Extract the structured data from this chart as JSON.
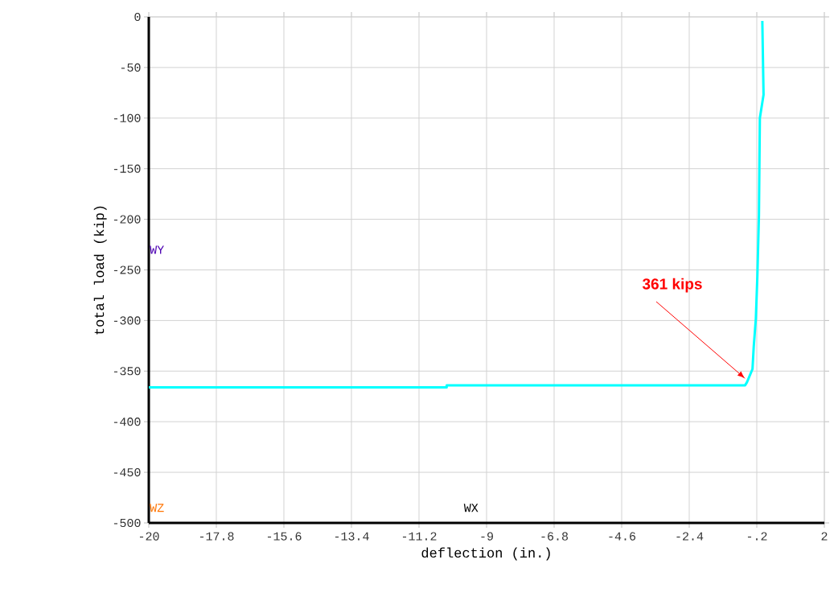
{
  "chart_data": {
    "type": "line",
    "xlabel": "deflection (in.)",
    "ylabel": "total load (kip)",
    "x": [
      -20,
      -10.3,
      -10.3,
      -0.58,
      -0.52,
      -0.34,
      -0.3,
      -0.23,
      -0.18,
      -0.13,
      -0.1,
      0.02,
      -0.02
    ],
    "series": [
      {
        "color": "#00ffff",
        "values": [
          -366,
          -366,
          -364,
          -364,
          -361,
          -348,
          -326,
          -298,
          -255,
          -196,
          -100,
          -77,
          -4
        ]
      }
    ],
    "xlim": [
      -20,
      2
    ],
    "ylim": [
      -500,
      0
    ],
    "xticks": [
      -20,
      -17.8,
      -15.6,
      -13.4,
      -11.2,
      -9,
      -6.8,
      -4.6,
      -2.4,
      {
        "value": -0.2,
        "label": "-.2"
      },
      2
    ],
    "yticks": [
      -500,
      -450,
      -400,
      -350,
      -300,
      -250,
      -200,
      -150,
      -100,
      -50,
      0
    ],
    "grid": true,
    "marker": "none",
    "line_style": "solid",
    "annotations": [
      "361 kips",
      "WY",
      "WZ",
      "WX"
    ]
  }
}
